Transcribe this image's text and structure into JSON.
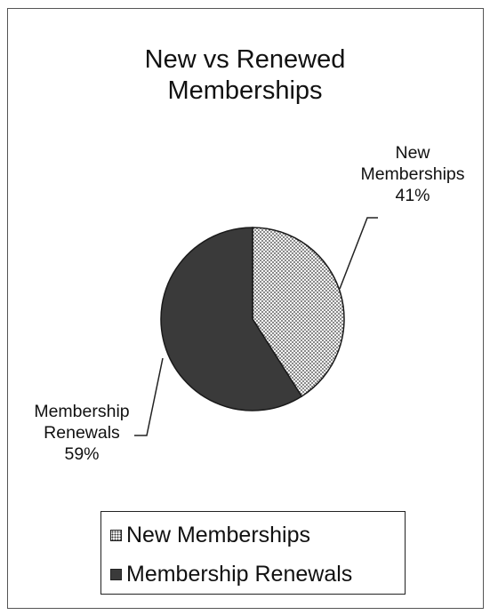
{
  "chart_data": {
    "type": "pie",
    "title": "New vs Renewed Memberships",
    "title_lines": [
      "New vs Renewed",
      "Memberships"
    ],
    "slices": [
      {
        "name": "New Memberships",
        "value": 41,
        "label_lines": [
          "New",
          "Memberships",
          "41%"
        ],
        "color": "#f4f4f4",
        "pattern": "dotted"
      },
      {
        "name": "Membership Renewals",
        "value": 59,
        "label_lines": [
          "Membership",
          "Renewals",
          "59%"
        ],
        "color": "#3a3a3a",
        "pattern": "solid"
      }
    ],
    "legend": {
      "position": "bottom",
      "items": [
        "New Memberships",
        "Membership Renewals"
      ]
    }
  }
}
